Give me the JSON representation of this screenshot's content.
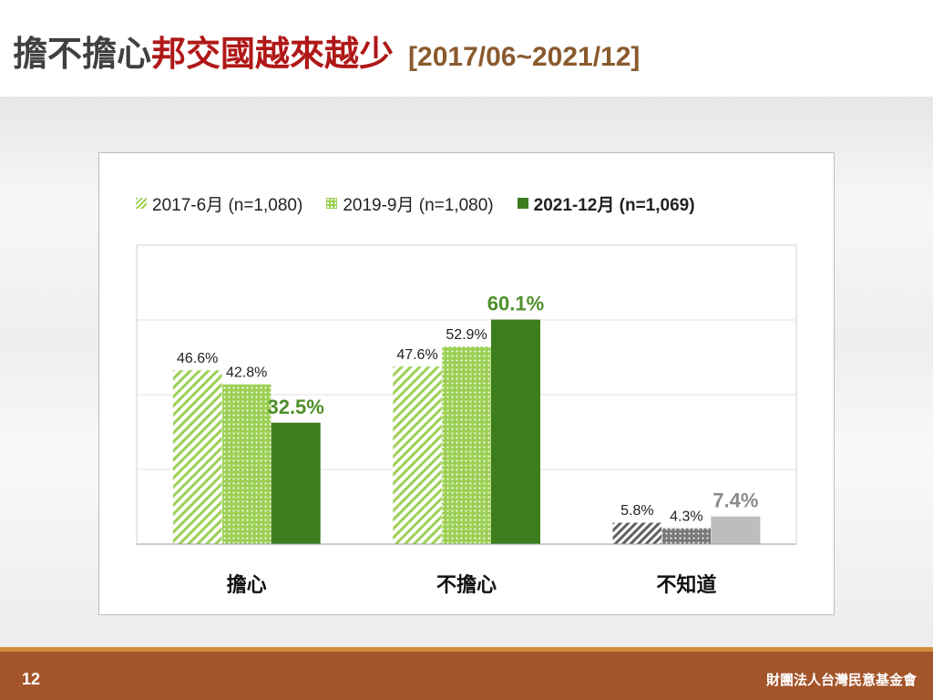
{
  "title": {
    "part1": "擔不擔心",
    "part2": "邦交國越來越少",
    "part3": "[2017/06~2021/12]"
  },
  "colors": {
    "light_green": "#9cd055",
    "dark_green": "#3e7d1e",
    "highlight_green": "#4e8f2a",
    "gray_dark": "#606060",
    "gray_light": "#bdbdbd",
    "footer": "#a4542a",
    "footer_stripe": "#d08a3a"
  },
  "legend": [
    {
      "label": "2017-6月  (n=1,080)",
      "style": "hatch"
    },
    {
      "label": "2019-9月  (n=1,080)",
      "style": "dot"
    },
    {
      "label": "2021-12月  (n=1,069)",
      "style": "solid"
    }
  ],
  "chart_data": {
    "type": "bar",
    "categories": [
      "擔心",
      "不擔心",
      "不知道"
    ],
    "series": [
      {
        "name": "2017-6月  (n=1,080)",
        "values": [
          46.6,
          47.6,
          5.8
        ],
        "labels": [
          "46.6%",
          "47.6%",
          "5.8%"
        ]
      },
      {
        "name": "2019-9月  (n=1,080)",
        "values": [
          42.8,
          52.9,
          4.3
        ],
        "labels": [
          "42.8%",
          "52.9%",
          "4.3%"
        ]
      },
      {
        "name": "2021-12月  (n=1,069)",
        "values": [
          32.5,
          60.1,
          7.4
        ],
        "labels": [
          "32.5%",
          "60.1%",
          "7.4%"
        ]
      }
    ],
    "ylim": [
      0,
      80
    ],
    "grid": true,
    "legend_position": "top"
  },
  "footer": {
    "page": "12",
    "org": "財團法人台灣民意基金會"
  }
}
